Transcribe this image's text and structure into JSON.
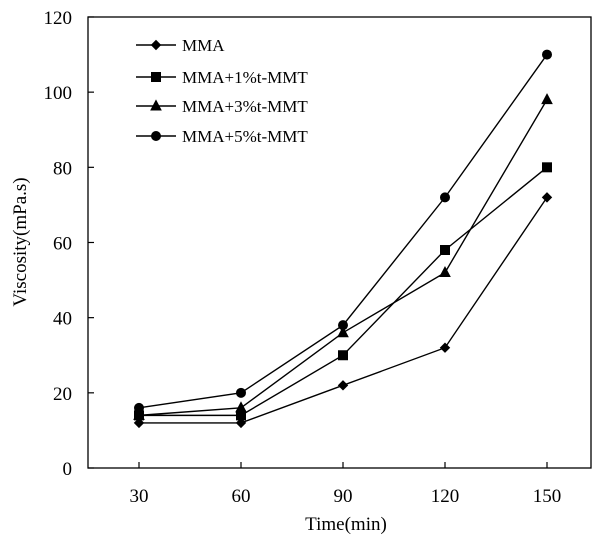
{
  "chart_data": {
    "type": "line",
    "title": "",
    "xlabel": "Time(min)",
    "ylabel": "Viscosity(mPa.s)",
    "x": [
      30,
      60,
      90,
      120,
      150
    ],
    "x_tick_labels": [
      "30",
      "60",
      "90",
      "120",
      "150"
    ],
    "y_tick_labels": [
      "0",
      "20",
      "40",
      "60",
      "80",
      "100",
      "120"
    ],
    "ylim": [
      0,
      120
    ],
    "grid": false,
    "legend_position": "top-left",
    "series": [
      {
        "name": "MMA",
        "marker": "diamond",
        "values": [
          12,
          12,
          22,
          32,
          72
        ]
      },
      {
        "name": "MMA+1%t-MMT",
        "marker": "square",
        "values": [
          14,
          14,
          30,
          58,
          80
        ]
      },
      {
        "name": "MMA+3%t-MMT",
        "marker": "triangle",
        "values": [
          14,
          16,
          36,
          52,
          98
        ]
      },
      {
        "name": "MMA+5%t-MMT",
        "marker": "circle",
        "values": [
          16,
          20,
          38,
          72,
          110
        ]
      }
    ],
    "line_color": "#000000"
  }
}
